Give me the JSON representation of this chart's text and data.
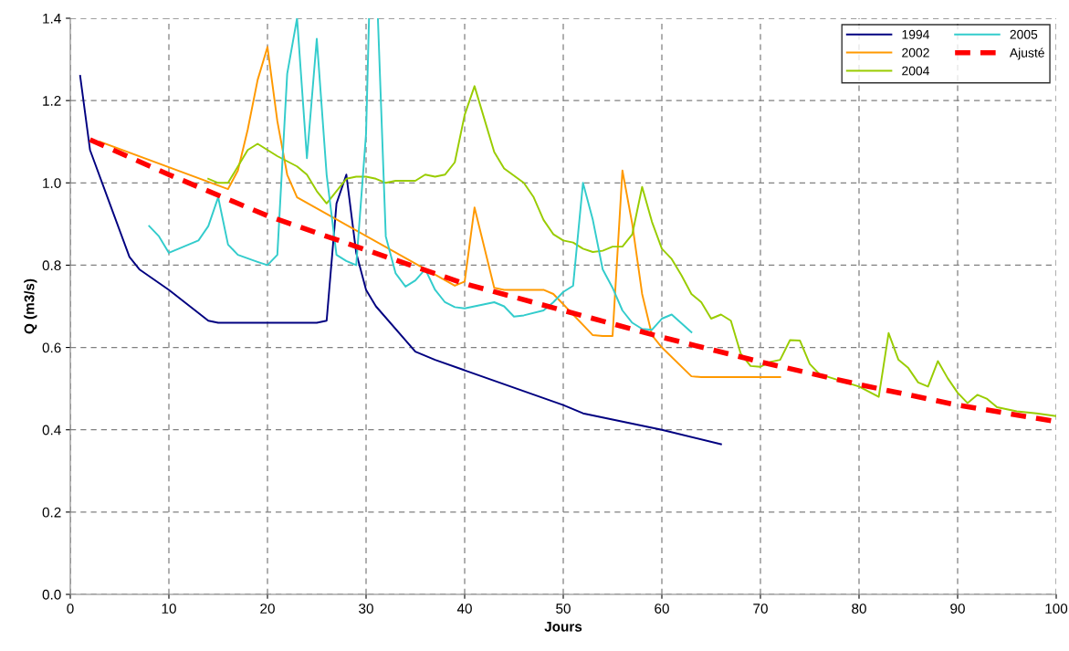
{
  "chart_data": {
    "type": "line",
    "xlabel": "Jours",
    "ylabel": "Q (m3/s)",
    "xlim": [
      0,
      100
    ],
    "ylim": [
      0,
      1.4
    ],
    "xticks": [
      0,
      10,
      20,
      30,
      40,
      50,
      60,
      70,
      80,
      90,
      100
    ],
    "yticks": [
      {
        "value": 0,
        "label": "0.0"
      },
      {
        "value": 0.2,
        "label": "0.2"
      },
      {
        "value": 0.4,
        "label": "0.4"
      },
      {
        "value": 0.6,
        "label": "0.6"
      },
      {
        "value": 0.8,
        "label": "0.8"
      },
      {
        "value": 1.0,
        "label": "1.0"
      },
      {
        "value": 1.2,
        "label": "1.2"
      },
      {
        "value": 1.4,
        "label": "1.4"
      }
    ],
    "grid": true,
    "legend": "top right",
    "marker": "none",
    "series": [
      {
        "name": "1994",
        "color": "#000080",
        "line_style": "solid",
        "x": [
          1,
          2,
          4,
          6,
          7,
          10,
          14,
          15,
          25,
          26,
          27,
          28,
          29,
          30,
          31,
          35,
          37,
          50,
          52,
          60,
          66
        ],
        "values": [
          1.26,
          1.08,
          0.95,
          0.82,
          0.79,
          0.74,
          0.665,
          0.66,
          0.66,
          0.665,
          0.95,
          1.02,
          0.83,
          0.74,
          0.7,
          0.59,
          0.57,
          0.46,
          0.44,
          0.4,
          0.365
        ]
      },
      {
        "name": "2002",
        "color": "#ff9900",
        "line_style": "solid",
        "x": [
          3,
          16,
          17,
          18,
          19,
          20,
          21,
          22,
          23,
          39,
          40,
          41,
          43,
          44,
          48,
          49,
          53,
          54,
          55,
          56,
          57,
          58,
          59,
          60,
          63,
          64,
          72
        ],
        "values": [
          1.1,
          0.985,
          1.03,
          1.13,
          1.25,
          1.33,
          1.15,
          1.02,
          0.965,
          0.75,
          0.76,
          0.94,
          0.745,
          0.74,
          0.74,
          0.73,
          0.63,
          0.628,
          0.628,
          1.03,
          0.9,
          0.73,
          0.63,
          0.6,
          0.53,
          0.528,
          0.528
        ]
      },
      {
        "name": "2004",
        "color": "#99cc00",
        "line_style": "solid",
        "x": [
          14,
          15,
          16,
          18,
          19,
          21,
          23,
          24,
          25,
          26,
          28,
          29,
          30,
          31,
          32,
          33,
          35,
          36,
          37,
          38,
          39,
          40,
          41,
          43,
          44,
          46,
          47,
          48,
          49,
          50,
          51,
          52,
          53,
          54,
          55,
          56,
          57,
          58,
          59,
          60,
          61,
          62,
          63,
          64,
          65,
          66,
          67,
          68,
          69,
          70,
          71,
          72,
          73,
          74,
          75,
          76,
          78,
          80,
          82,
          83,
          84,
          85,
          86,
          87,
          88,
          89,
          90,
          91,
          92,
          93,
          94,
          96,
          98,
          100
        ],
        "values": [
          1.01,
          1.0,
          1.0,
          1.08,
          1.095,
          1.065,
          1.04,
          1.02,
          0.98,
          0.95,
          1.01,
          1.015,
          1.015,
          1.01,
          1.0,
          1.005,
          1.005,
          1.02,
          1.015,
          1.02,
          1.05,
          1.165,
          1.235,
          1.075,
          1.035,
          1.0,
          0.965,
          0.91,
          0.875,
          0.86,
          0.855,
          0.84,
          0.832,
          0.835,
          0.845,
          0.845,
          0.875,
          0.99,
          0.905,
          0.84,
          0.815,
          0.775,
          0.73,
          0.71,
          0.67,
          0.68,
          0.665,
          0.585,
          0.555,
          0.553,
          0.565,
          0.57,
          0.618,
          0.617,
          0.56,
          0.535,
          0.52,
          0.505,
          0.48,
          0.635,
          0.57,
          0.55,
          0.515,
          0.505,
          0.567,
          0.525,
          0.49,
          0.465,
          0.485,
          0.475,
          0.455,
          0.445,
          0.44,
          0.433
        ]
      },
      {
        "name": "2005",
        "color": "#33cccc",
        "line_style": "solid",
        "x": [
          8,
          9,
          10,
          11,
          13,
          14,
          15,
          16,
          17,
          19,
          20,
          21,
          22,
          23,
          24,
          25,
          26,
          27,
          28,
          29,
          30,
          30.3,
          31,
          31.2,
          32,
          33,
          34,
          35,
          36,
          37,
          38,
          39,
          40,
          42,
          43,
          44,
          45,
          46,
          48,
          49,
          50,
          51,
          52,
          53,
          54,
          55,
          56,
          57,
          58,
          59,
          60,
          61,
          63
        ],
        "values": [
          0.895,
          0.87,
          0.83,
          0.84,
          0.86,
          0.895,
          0.965,
          0.85,
          0.825,
          0.808,
          0.8,
          0.825,
          1.265,
          1.4,
          1.06,
          1.35,
          1.02,
          0.825,
          0.81,
          0.8,
          1.12,
          1.4,
          null,
          1.4,
          0.87,
          0.78,
          0.748,
          0.763,
          0.79,
          0.74,
          0.71,
          0.698,
          0.695,
          0.705,
          0.71,
          0.7,
          0.675,
          0.678,
          0.69,
          0.71,
          0.735,
          0.75,
          1.0,
          0.91,
          0.79,
          0.745,
          0.69,
          0.66,
          0.645,
          0.643,
          0.67,
          0.68,
          0.637
        ]
      },
      {
        "name": "Ajusté",
        "color": "#ff0000",
        "line_style": "dashed",
        "x": [
          2,
          10,
          20,
          30,
          40,
          50,
          60,
          70,
          80,
          90,
          100
        ],
        "values": [
          1.105,
          1.02,
          0.92,
          0.837,
          0.755,
          0.69,
          0.625,
          0.565,
          0.51,
          0.46,
          0.42
        ]
      }
    ]
  }
}
